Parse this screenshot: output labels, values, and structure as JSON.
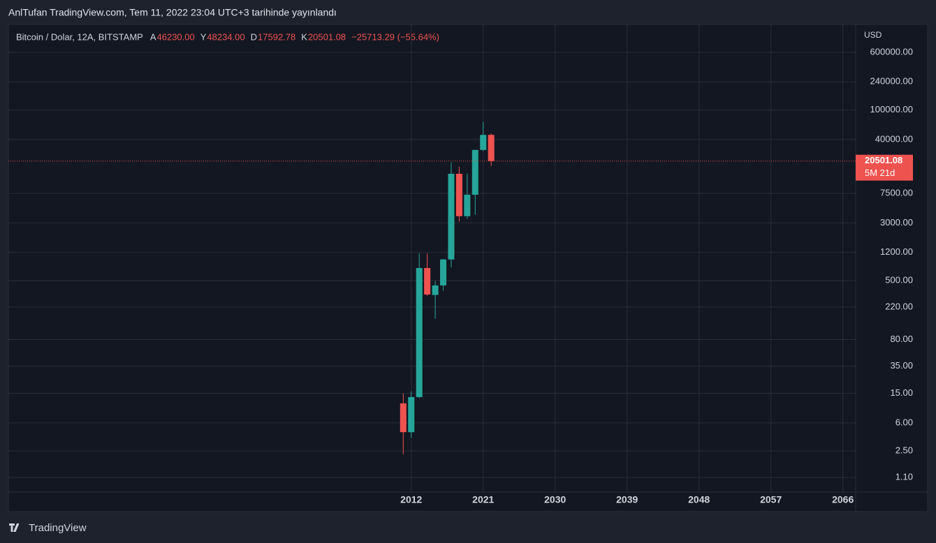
{
  "chart_data": {
    "type": "candlestick",
    "title": "AnlTufan TradingView.com, Tem 11, 2022 23:04 UTC+3 tarihinde yayınlandı",
    "symbol": "Bitcoin / Dolar, 12A, BITSTAMP",
    "header": [
      {
        "key": "A",
        "value": "46230.00"
      },
      {
        "key": "Y",
        "value": "48234.00"
      },
      {
        "key": "D",
        "value": "17592.78"
      },
      {
        "key": "K",
        "value": "20501.08"
      }
    ],
    "change": "−25713.29 (−55.64%)",
    "y_axis_label": "USD",
    "x": [
      2011,
      2012,
      2013,
      2014,
      2015,
      2016,
      2017,
      2018,
      2019,
      2020,
      2021,
      2022
    ],
    "open": [
      11,
      4.5,
      13.4,
      738,
      320,
      430,
      963,
      13800,
      3693,
      7195,
      28990,
      46230
    ],
    "high": [
      15,
      16,
      1163,
      1160,
      495,
      980,
      19666,
      17200,
      13880,
      29000,
      69000,
      48234
    ],
    "low": [
      2.26,
      3.8,
      13,
      310,
      152,
      365,
      752,
      3122,
      3391,
      3850,
      28000,
      17592.78
    ],
    "close": [
      4.5,
      13.4,
      738,
      324,
      430,
      963,
      13800,
      3693,
      7195,
      28990,
      46230,
      20501.08
    ],
    "up_color": "#26a69a",
    "down_color": "#ef5350",
    "log_scale": true,
    "grid": true,
    "xlim": [
      1961.6,
      2067.6
    ],
    "xticks": [
      2012,
      2021,
      2030,
      2039,
      2048,
      2057,
      2066
    ],
    "ylim": [
      0.7,
      1430000
    ],
    "yticks": [
      {
        "value": 600000,
        "label": "600000.00"
      },
      {
        "value": 240000,
        "label": "240000.00"
      },
      {
        "value": 100000,
        "label": "100000.00"
      },
      {
        "value": 40000,
        "label": "40000.00"
      },
      {
        "value": 7500,
        "label": "7500.00"
      },
      {
        "value": 3000,
        "label": "3000.00"
      },
      {
        "value": 1200,
        "label": "1200.00"
      },
      {
        "value": 500,
        "label": "500.00"
      },
      {
        "value": 220,
        "label": "220.00"
      },
      {
        "value": 80,
        "label": "80.00"
      },
      {
        "value": 35,
        "label": "35.00"
      },
      {
        "value": 15,
        "label": "15.00"
      },
      {
        "value": 6,
        "label": "6.00"
      },
      {
        "value": 2.5,
        "label": "2.50"
      },
      {
        "value": 1.1,
        "label": "1.10"
      }
    ],
    "last_price": {
      "label": "20501.08",
      "countdown": "5M 21d"
    },
    "brand": "TradingView"
  }
}
